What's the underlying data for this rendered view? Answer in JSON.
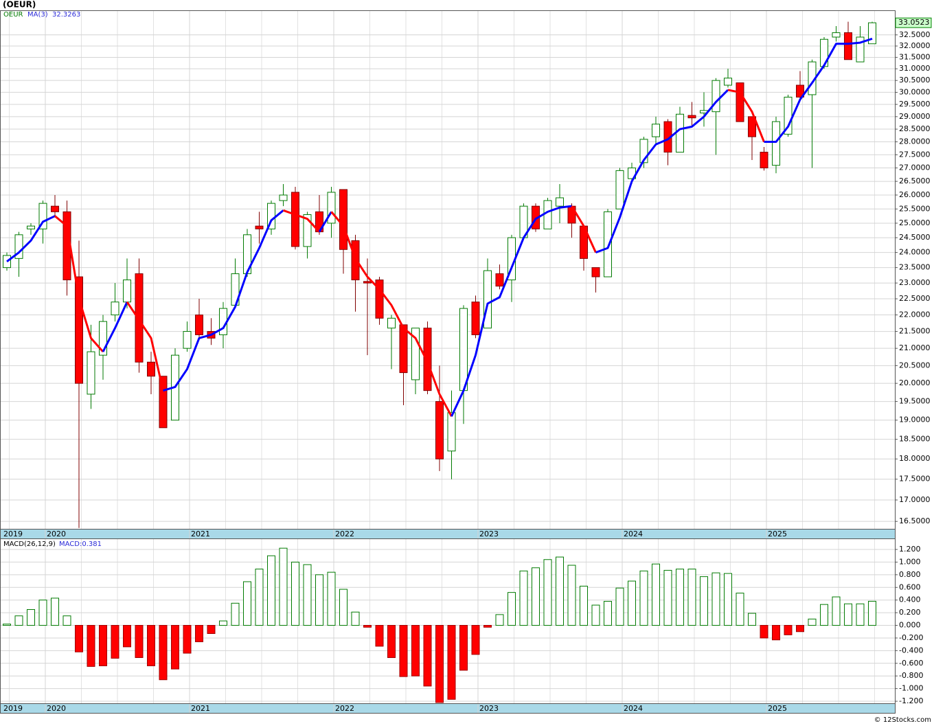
{
  "chart_data": [
    {
      "type": "candlestick",
      "title": "(OEUR)",
      "name": "OEUR",
      "log_scale": true,
      "grid": true,
      "colors": {
        "up": "#007a00",
        "down": "#ff0000",
        "ma_up": "#0000ff",
        "ma_down": "#ff0000",
        "name": "#007a00",
        "ma_label": "#2a2ad8"
      },
      "open": [
        23.5,
        23.8,
        24.8,
        24.8,
        25.6,
        25.4,
        23.2,
        19.7,
        20.8,
        22.0,
        22.4,
        23.3,
        20.6,
        20.2,
        19.0,
        21.0,
        22.0,
        21.5,
        21.4,
        22.3,
        23.3,
        24.9,
        24.8,
        25.8,
        26.1,
        24.2,
        25.4,
        25.0,
        26.2,
        24.4,
        23.05,
        23.1,
        21.6,
        21.7,
        20.1,
        21.6,
        19.5,
        18.2,
        19.8,
        22.4,
        21.6,
        23.3,
        23.1,
        24.5,
        25.6,
        24.8,
        25.6,
        25.6,
        24.9,
        23.5,
        23.2,
        25.5,
        26.6,
        27.2,
        28.2,
        28.8,
        27.6,
        29.05,
        29.15,
        29.2,
        30.3,
        30.4,
        29.0,
        27.6,
        27.1,
        28.3,
        30.3,
        29.9,
        31.1,
        32.4,
        32.6,
        31.3,
        32.1
      ],
      "high": [
        24.0,
        24.7,
        25.0,
        25.8,
        26.0,
        25.8,
        24.4,
        21.7,
        22.0,
        23.0,
        23.8,
        23.8,
        20.9,
        20.2,
        21.0,
        21.8,
        22.5,
        21.9,
        22.4,
        23.8,
        24.8,
        25.4,
        25.8,
        26.4,
        26.3,
        25.4,
        26.0,
        26.3,
        26.2,
        24.6,
        23.8,
        23.2,
        22.0,
        21.7,
        21.6,
        21.8,
        20.5,
        19.8,
        22.3,
        22.6,
        23.8,
        23.6,
        24.6,
        25.7,
        25.7,
        25.9,
        26.4,
        25.7,
        24.9,
        23.5,
        25.5,
        27.0,
        27.2,
        28.2,
        29.0,
        28.9,
        29.4,
        29.6,
        30.0,
        30.6,
        31.0,
        30.4,
        29.0,
        27.8,
        29.0,
        29.9,
        30.9,
        31.4,
        32.4,
        32.9,
        33.1,
        32.9,
        33.1
      ],
      "low": [
        23.4,
        23.2,
        24.6,
        24.3,
        25.2,
        22.6,
        16.35,
        19.3,
        20.1,
        21.8,
        22.2,
        20.3,
        19.7,
        18.8,
        19.0,
        20.9,
        21.3,
        21.1,
        21.0,
        22.3,
        23.2,
        24.3,
        24.6,
        25.6,
        24.1,
        23.8,
        24.6,
        24.5,
        23.3,
        22.1,
        20.8,
        21.7,
        20.4,
        19.4,
        19.7,
        19.7,
        17.7,
        17.5,
        18.9,
        21.3,
        21.6,
        22.8,
        22.4,
        24.5,
        24.7,
        24.8,
        25.0,
        24.5,
        23.4,
        22.7,
        23.2,
        25.5,
        26.4,
        27.0,
        27.9,
        27.1,
        27.6,
        28.6,
        28.6,
        27.5,
        30.2,
        28.8,
        27.3,
        26.9,
        26.8,
        28.2,
        29.7,
        27.0,
        31.0,
        32.2,
        31.4,
        31.3,
        32.1
      ],
      "close": [
        23.9,
        24.6,
        24.9,
        25.7,
        25.4,
        23.1,
        20.0,
        20.9,
        21.8,
        22.4,
        23.1,
        20.6,
        20.2,
        18.8,
        20.8,
        21.5,
        21.4,
        21.3,
        22.2,
        23.3,
        24.6,
        24.8,
        25.7,
        26.0,
        24.2,
        25.3,
        24.7,
        26.1,
        24.1,
        23.1,
        23.0,
        21.9,
        21.9,
        20.3,
        21.6,
        19.8,
        18.0,
        19.2,
        22.2,
        21.4,
        23.4,
        22.9,
        24.5,
        25.6,
        24.8,
        25.8,
        25.9,
        25.0,
        23.8,
        23.2,
        25.4,
        26.9,
        27.0,
        28.1,
        28.7,
        27.6,
        29.1,
        28.95,
        29.25,
        30.5,
        30.6,
        28.8,
        28.2,
        27.0,
        28.8,
        29.8,
        29.8,
        31.3,
        32.3,
        32.6,
        31.4,
        32.4,
        33.0523
      ],
      "ma": {
        "name": "MA(3)",
        "values": [
          23.7,
          24.0,
          24.4,
          25.05,
          25.25,
          24.9,
          22.5,
          21.3,
          20.9,
          21.6,
          22.4,
          21.85,
          21.3,
          19.8,
          19.9,
          20.4,
          21.3,
          21.4,
          21.6,
          22.25,
          23.35,
          24.15,
          25.1,
          25.45,
          25.3,
          25.15,
          24.7,
          25.4,
          24.9,
          23.8,
          23.2,
          22.8,
          22.3,
          21.6,
          21.3,
          20.6,
          19.7,
          19.1,
          19.8,
          20.8,
          22.35,
          22.55,
          23.5,
          24.5,
          25.15,
          25.4,
          25.55,
          25.6,
          24.9,
          24.0,
          24.15,
          25.2,
          26.5,
          27.3,
          27.9,
          28.1,
          28.5,
          28.6,
          29.0,
          29.6,
          30.1,
          30.0,
          29.2,
          28.0,
          28.0,
          28.6,
          29.7,
          30.4,
          31.15,
          32.1,
          32.1,
          32.15,
          32.3263
        ]
      },
      "ylim": [
        16.33,
        33.6
      ],
      "yticks": [
        {
          "value": 16.5,
          "label": "16.5000"
        },
        {
          "value": 17,
          "label": "17.0000"
        },
        {
          "value": 17.5,
          "label": "17.5000"
        },
        {
          "value": 18,
          "label": "18.0000"
        },
        {
          "value": 18.5,
          "label": "18.5000"
        },
        {
          "value": 19,
          "label": "19.0000"
        },
        {
          "value": 19.5,
          "label": "19.5000"
        },
        {
          "value": 20,
          "label": "20.0000"
        },
        {
          "value": 20.5,
          "label": "20.5000"
        },
        {
          "value": 21,
          "label": "21.0000"
        },
        {
          "value": 21.5,
          "label": "21.5000"
        },
        {
          "value": 22,
          "label": "22.0000"
        },
        {
          "value": 22.5,
          "label": "22.5000"
        },
        {
          "value": 23,
          "label": "23.0000"
        },
        {
          "value": 23.5,
          "label": "23.5000"
        },
        {
          "value": 24,
          "label": "24.0000"
        },
        {
          "value": 24.5,
          "label": "24.5000"
        },
        {
          "value": 25,
          "label": "25.0000"
        },
        {
          "value": 25.5,
          "label": "25.5000"
        },
        {
          "value": 26,
          "label": "26.0000"
        },
        {
          "value": 26.5,
          "label": "26.5000"
        },
        {
          "value": 27,
          "label": "27.0000"
        },
        {
          "value": 27.5,
          "label": "27.5000"
        },
        {
          "value": 28,
          "label": "28.0000"
        },
        {
          "value": 28.5,
          "label": "28.5000"
        },
        {
          "value": 29,
          "label": "29.0000"
        },
        {
          "value": 29.5,
          "label": "29.5000"
        },
        {
          "value": 30,
          "label": "30.0000"
        },
        {
          "value": 30.5,
          "label": "30.5000"
        },
        {
          "value": 31,
          "label": "31.0000"
        },
        {
          "value": 31.5,
          "label": "31.5000"
        },
        {
          "value": 32,
          "label": "32.0000"
        },
        {
          "value": 32.5,
          "label": "32.5000"
        }
      ],
      "xticks": [
        "2019",
        "2020",
        "2021",
        "2022",
        "2023",
        "2024",
        "2025"
      ]
    },
    {
      "type": "bar",
      "name": "MACD(26,12,9)",
      "current_label": "MACD:0.381",
      "grid": true,
      "colors": {
        "up": "#007a00",
        "down": "#ff0000",
        "label": "#2a2ad8"
      },
      "values": [
        0.02,
        0.15,
        0.25,
        0.4,
        0.43,
        0.15,
        -0.42,
        -0.65,
        -0.64,
        -0.52,
        -0.34,
        -0.51,
        -0.64,
        -0.86,
        -0.69,
        -0.44,
        -0.26,
        -0.13,
        0.07,
        0.35,
        0.69,
        0.89,
        1.1,
        1.22,
        1.0,
        0.96,
        0.8,
        0.84,
        0.57,
        0.21,
        -0.03,
        -0.33,
        -0.51,
        -0.81,
        -0.8,
        -0.96,
        -1.22,
        -1.17,
        -0.71,
        -0.46,
        -0.03,
        0.17,
        0.52,
        0.86,
        0.91,
        1.04,
        1.08,
        0.95,
        0.62,
        0.32,
        0.38,
        0.59,
        0.7,
        0.86,
        0.97,
        0.87,
        0.89,
        0.89,
        0.77,
        0.83,
        0.82,
        0.51,
        0.19,
        -0.2,
        -0.23,
        -0.15,
        -0.1,
        0.1,
        0.33,
        0.45,
        0.34,
        0.34,
        0.381
      ],
      "ylim": [
        -1.232,
        1.363
      ],
      "yticks": [
        {
          "value": -1.2,
          "label": "-1.200"
        },
        {
          "value": -1.0,
          "label": "-1.000"
        },
        {
          "value": -0.8,
          "label": "-0.800"
        },
        {
          "value": -0.6,
          "label": "-0.600"
        },
        {
          "value": -0.4,
          "label": "-0.400"
        },
        {
          "value": -0.2,
          "label": "-0.200"
        },
        {
          "value": 0,
          "label": "0.000"
        },
        {
          "value": 0.2,
          "label": "0.200"
        },
        {
          "value": 0.4,
          "label": "0.400"
        },
        {
          "value": 0.6,
          "label": "0.600"
        },
        {
          "value": 0.8,
          "label": "0.800"
        },
        {
          "value": 1.0,
          "label": "1.000"
        },
        {
          "value": 1.2,
          "label": "1.200"
        }
      ],
      "xticks": [
        "2019",
        "2020",
        "2021",
        "2022",
        "2023",
        "2024",
        "2025"
      ]
    }
  ],
  "footer": "© 12Stocks.com"
}
